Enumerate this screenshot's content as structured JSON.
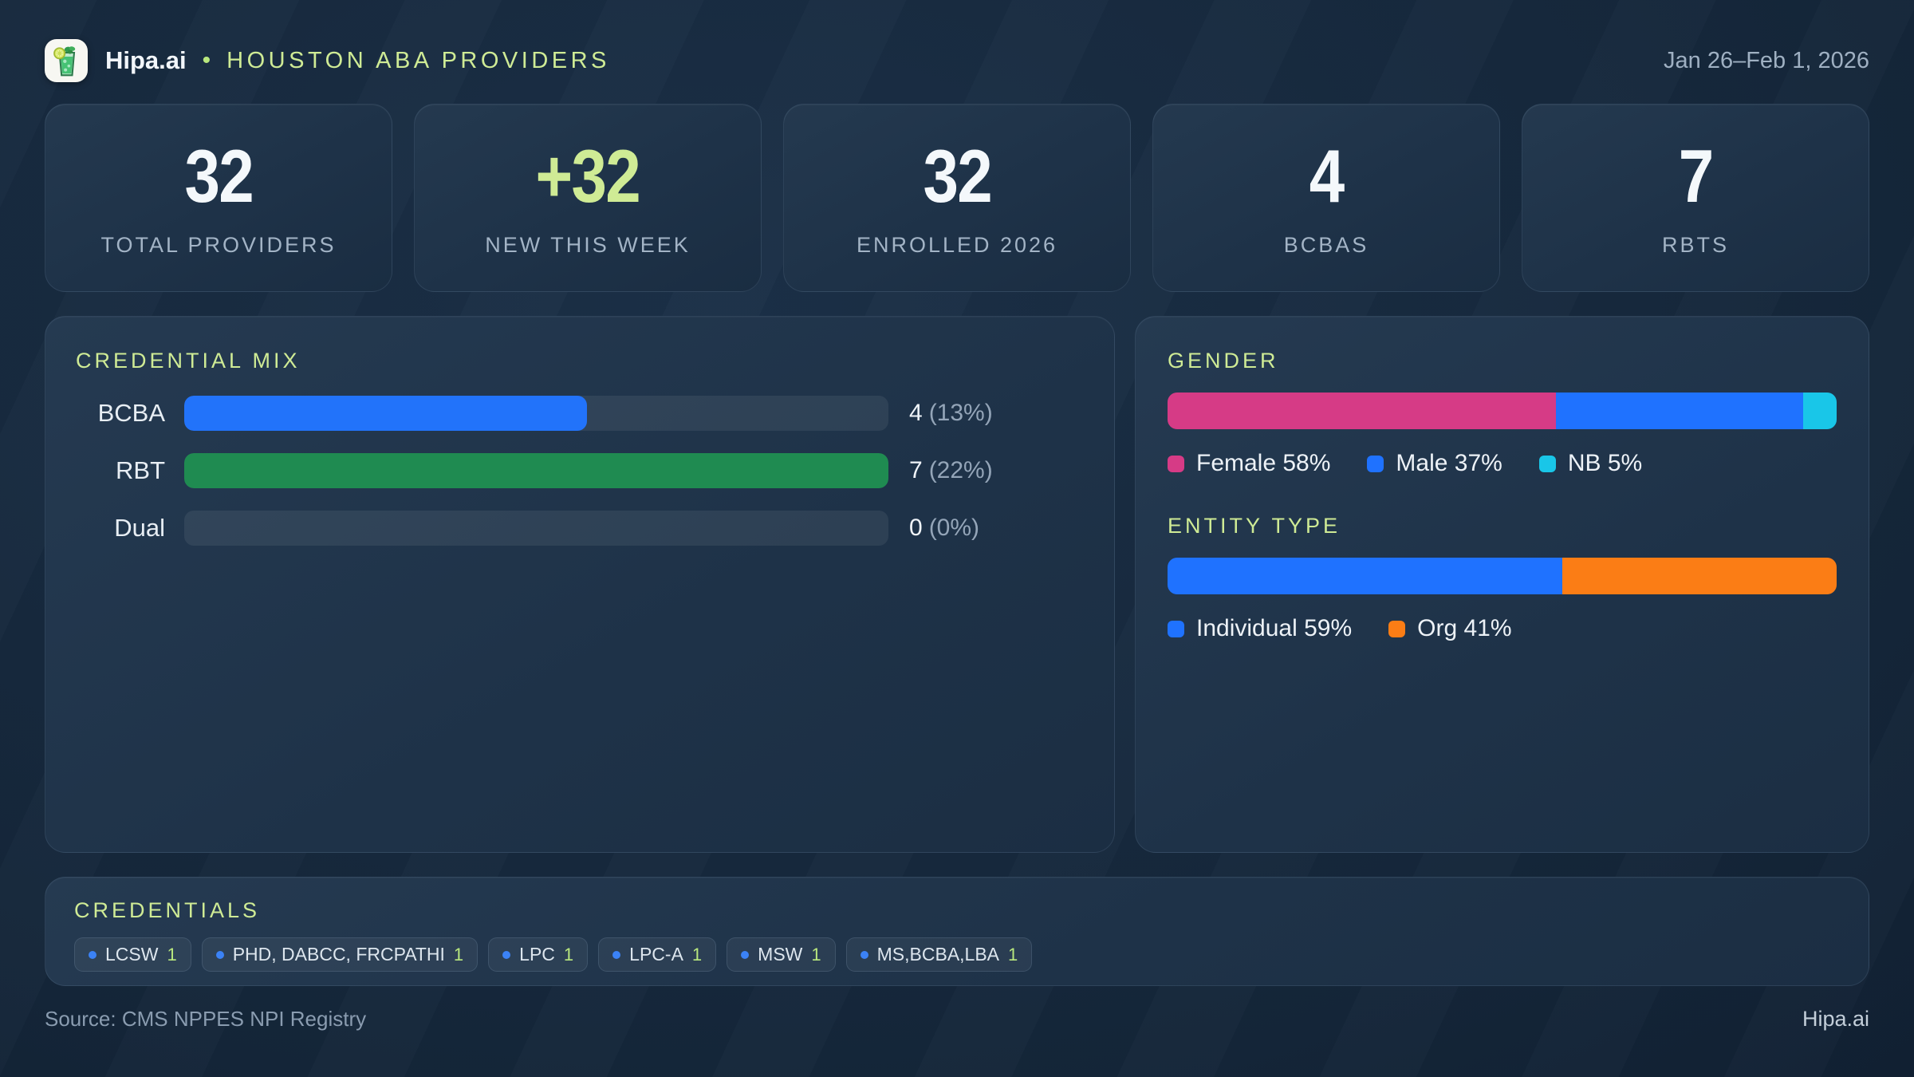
{
  "header": {
    "brand": "Hipa.ai",
    "separator": "•",
    "title": "HOUSTON ABA PROVIDERS",
    "date_range": "Jan 26–Feb 1, 2026"
  },
  "stats": [
    {
      "value": "32",
      "label": "TOTAL PROVIDERS",
      "accent": false
    },
    {
      "value": "+32",
      "label": "NEW THIS WEEK",
      "accent": true
    },
    {
      "value": "32",
      "label": "ENROLLED 2026",
      "accent": false
    },
    {
      "value": "4",
      "label": "BCBAS",
      "accent": false
    },
    {
      "value": "7",
      "label": "RBTS",
      "accent": false
    }
  ],
  "chart_data": [
    {
      "type": "bar",
      "title": "CREDENTIAL MIX",
      "orientation": "horizontal",
      "categories": [
        "BCBA",
        "RBT",
        "Dual"
      ],
      "values": [
        4,
        7,
        0
      ],
      "percent_labels": [
        "(13%)",
        "(22%)",
        "(0%)"
      ],
      "bar_colors": [
        "#2273fa",
        "#1f8b51",
        "none"
      ],
      "xlim": [
        0,
        7
      ],
      "track_color": "rgba(255,255,255,0.07)"
    },
    {
      "type": "stacked-bar",
      "title": "GENDER",
      "segments": [
        {
          "label": "Female",
          "pct": 58,
          "color": "#d63b86",
          "legend": "Female 58%"
        },
        {
          "label": "Male",
          "pct": 37,
          "color": "#1f72ff",
          "legend": "Male 37%"
        },
        {
          "label": "NB",
          "pct": 5,
          "color": "#19c6e8",
          "legend": "NB 5%"
        }
      ]
    },
    {
      "type": "stacked-bar",
      "title": "ENTITY TYPE",
      "segments": [
        {
          "label": "Individual",
          "pct": 59,
          "color": "#1f72ff",
          "legend": "Individual 59%"
        },
        {
          "label": "Org",
          "pct": 41,
          "color": "#fb7d15",
          "legend": "Org 41%"
        }
      ]
    }
  ],
  "credentials": {
    "title": "CREDENTIALS",
    "chips": [
      {
        "label": "LCSW",
        "count": "1"
      },
      {
        "label": "PHD, DABCC, FRCPATHI",
        "count": "1"
      },
      {
        "label": "LPC",
        "count": "1"
      },
      {
        "label": "LPC-A",
        "count": "1"
      },
      {
        "label": "MSW",
        "count": "1"
      },
      {
        "label": "MS,BCBA,LBA",
        "count": "1"
      }
    ]
  },
  "footer": {
    "source": "Source: CMS NPPES NPI Registry",
    "brand": "Hipa.ai"
  },
  "colors": {
    "accent_green": "#cfeb95",
    "bar_blue": "#2273fa",
    "bar_green": "#1f8b51",
    "pink": "#d63b86",
    "blue": "#1f72ff",
    "cyan": "#19c6e8",
    "orange": "#fb7d15",
    "chip_dot_blue": "#3b82f6",
    "count_green": "#b9e87e"
  }
}
